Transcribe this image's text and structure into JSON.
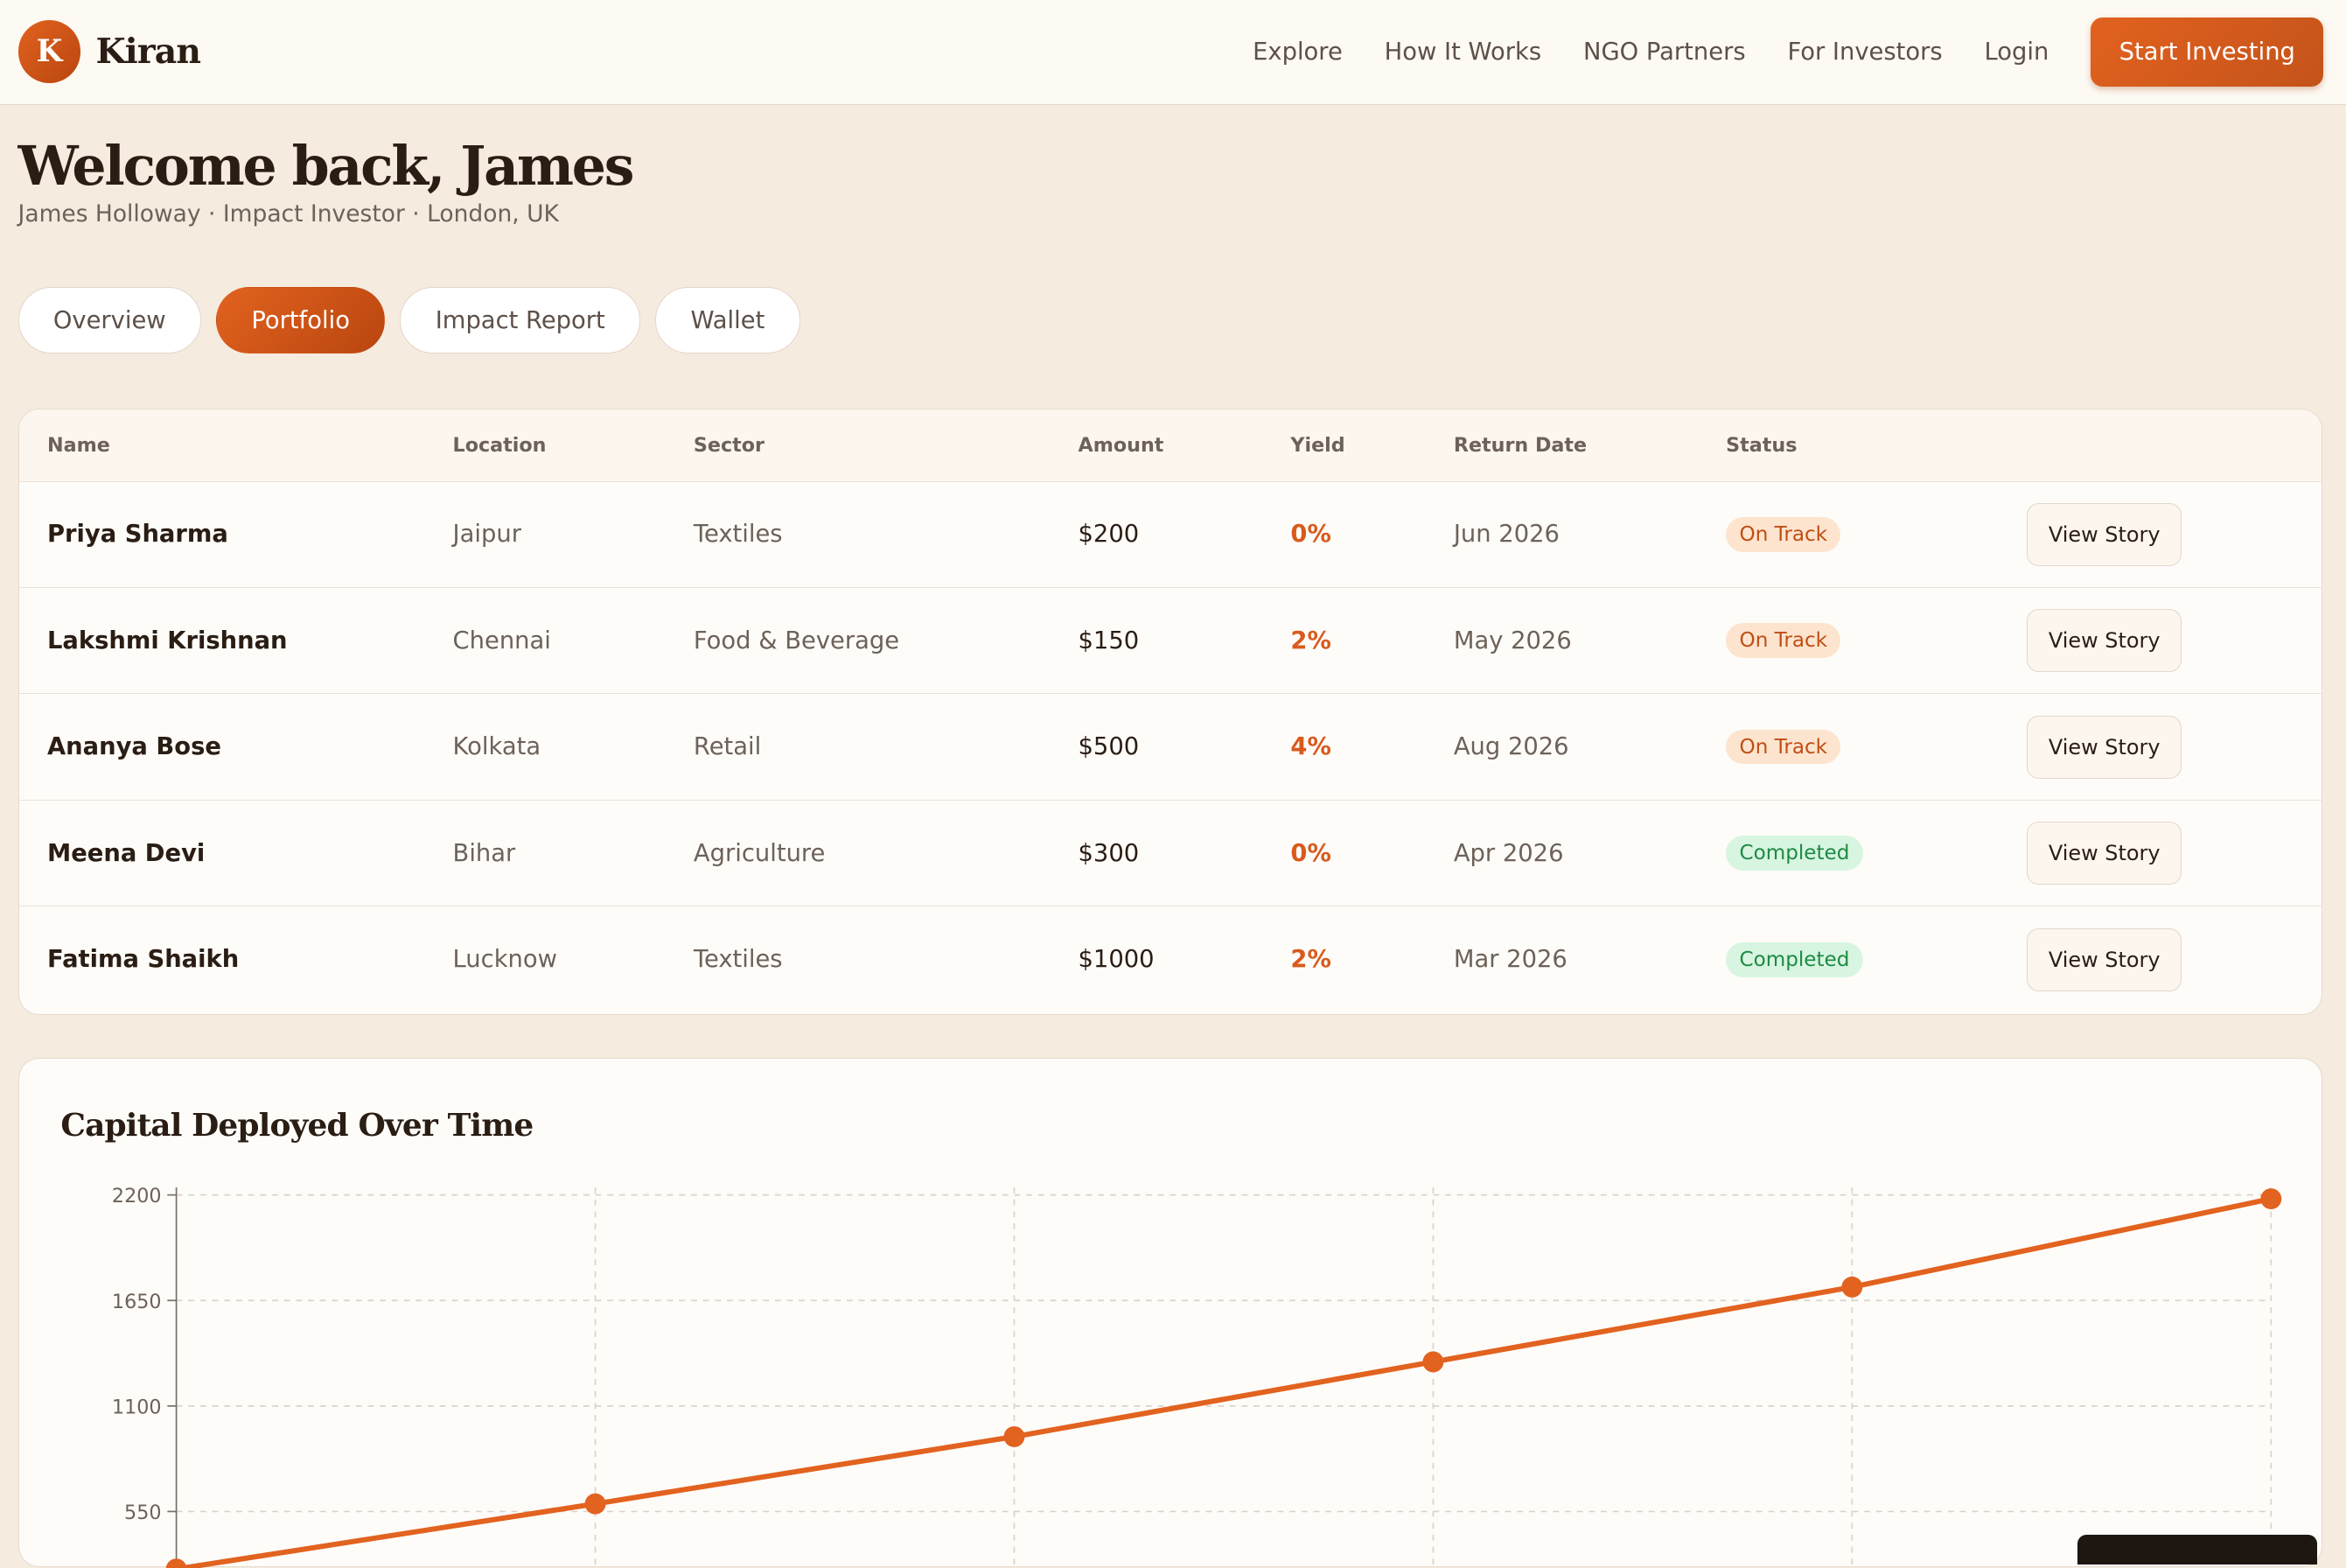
{
  "app": {
    "logo_letter": "K",
    "name": "Kiran"
  },
  "nav": {
    "items": [
      "Explore",
      "How It Works",
      "NGO Partners",
      "For Investors",
      "Login"
    ],
    "cta": "Start Investing"
  },
  "welcome": {
    "title": "Welcome back, James",
    "subtitle": "James Holloway · Impact Investor · London, UK"
  },
  "tabs": [
    {
      "label": "Overview",
      "active": false
    },
    {
      "label": "Portfolio",
      "active": true
    },
    {
      "label": "Impact Report",
      "active": false
    },
    {
      "label": "Wallet",
      "active": false
    }
  ],
  "table": {
    "columns": [
      "Name",
      "Location",
      "Sector",
      "Amount",
      "Yield",
      "Return Date",
      "Status",
      ""
    ],
    "rows": [
      {
        "name": "Priya Sharma",
        "location": "Jaipur",
        "sector": "Textiles",
        "amount": "$200",
        "yield": "0%",
        "return_date": "Jun 2026",
        "status": "On Track",
        "action": "View Story"
      },
      {
        "name": "Lakshmi Krishnan",
        "location": "Chennai",
        "sector": "Food & Beverage",
        "amount": "$150",
        "yield": "2%",
        "return_date": "May 2026",
        "status": "On Track",
        "action": "View Story"
      },
      {
        "name": "Ananya Bose",
        "location": "Kolkata",
        "sector": "Retail",
        "amount": "$500",
        "yield": "4%",
        "return_date": "Aug 2026",
        "status": "On Track",
        "action": "View Story"
      },
      {
        "name": "Meena Devi",
        "location": "Bihar",
        "sector": "Agriculture",
        "amount": "$300",
        "yield": "0%",
        "return_date": "Apr 2026",
        "status": "Completed",
        "action": "View Story"
      },
      {
        "name": "Fatima Shaikh",
        "location": "Lucknow",
        "sector": "Textiles",
        "amount": "$1000",
        "yield": "2%",
        "return_date": "Mar 2026",
        "status": "Completed",
        "action": "View Story"
      }
    ]
  },
  "colors": {
    "accent": "#e2621f",
    "on_track_bg": "#fde4cf",
    "completed_bg": "#d7f5e0"
  },
  "chart_data": {
    "type": "line",
    "title": "Capital Deployed Over Time",
    "ylim": [
      0,
      2200
    ],
    "y_ticks": [
      550,
      1100,
      1650,
      2200
    ],
    "x": [
      0,
      1,
      2,
      3,
      4,
      5
    ],
    "series": [
      {
        "values": [
          250,
          590,
          940,
          1330,
          1720,
          2180
        ]
      }
    ],
    "grid": true
  }
}
